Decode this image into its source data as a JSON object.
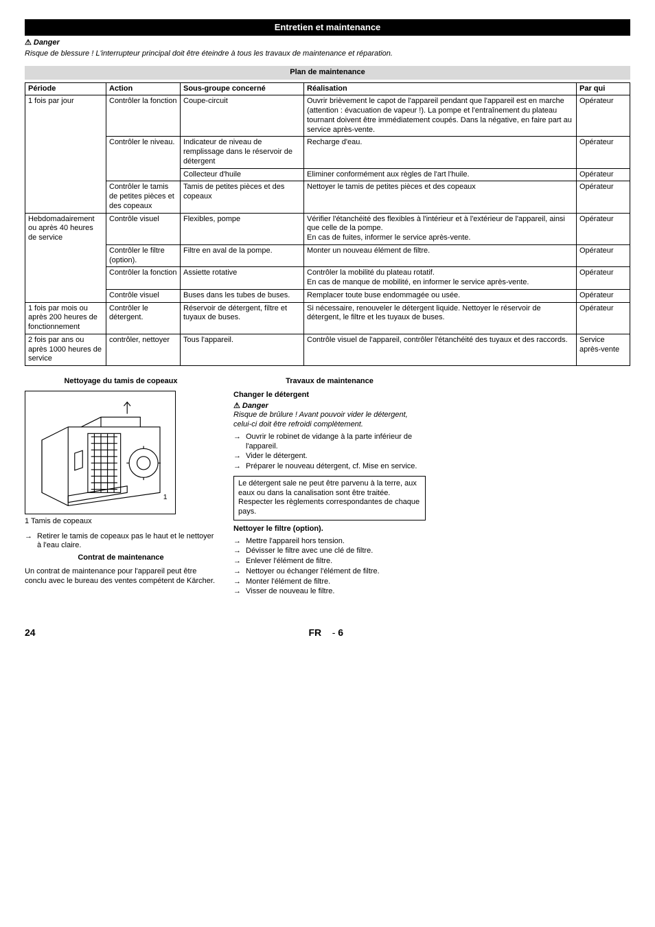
{
  "sectionTitle": "Entretien et maintenance",
  "danger": {
    "label": "Danger",
    "text": "Risque de blessure ! L'interrupteur principal doit être éteindre à tous les travaux de maintenance et réparation."
  },
  "planTitle": "Plan de maintenance",
  "table": {
    "headers": [
      "Période",
      "Action",
      "Sous-groupe concerné",
      "Réalisation",
      "Par qui"
    ],
    "groups": [
      {
        "period": "1 fois par jour",
        "rows": [
          {
            "action": "Contrôler la fonction",
            "sub": "Coupe-circuit",
            "real": "Ouvrir brièvement le capot de l'appareil pendant que l'appareil est en marche (attention : évacuation de vapeur !). La pompe et l'entraînement du plateau tournant doivent être immédiatement coupés. Dans la négative, en faire part au service après-vente.",
            "who": "Opérateur",
            "actionRowspan": 1
          },
          {
            "action": "Contrôler le niveau.",
            "sub": "Indicateur de niveau de remplissage dans le réservoir de détergent",
            "real": "Recharge d'eau.",
            "who": "Opérateur",
            "actionRowspan": 2
          },
          {
            "action": "",
            "sub": "Collecteur d'huile",
            "real": "Eliminer conformément aux règles de l'art l'huile.",
            "who": "Opérateur"
          },
          {
            "action": "Contrôler le tamis de petites pièces et des copeaux",
            "sub": "Tamis de petites pièces et des copeaux",
            "real": "Nettoyer le tamis de petites pièces et des copeaux",
            "who": "Opérateur",
            "actionRowspan": 1
          }
        ]
      },
      {
        "period": "Hebdomadairement ou après 40 heures de service",
        "rows": [
          {
            "action": "Contrôle visuel",
            "sub": "Flexibles, pompe",
            "real": "Vérifier l'étanchéité des flexibles à l'intérieur et à l'extérieur de l'appareil, ainsi que celle de la pompe.\nEn cas de fuites, informer le service après-vente.",
            "who": "Opérateur",
            "actionRowspan": 1
          },
          {
            "action": "Contrôler le filtre (option).",
            "sub": "Filtre en aval de la pompe.",
            "real": "Monter un nouveau élément de filtre.",
            "who": "Opérateur",
            "actionRowspan": 1
          },
          {
            "action": "Contrôler la fonction",
            "sub": "Assiette rotative",
            "real": "Contrôler la mobilité du plateau rotatif.\nEn cas de manque de mobilité, en informer le service après-vente.",
            "who": "Opérateur",
            "actionRowspan": 1
          },
          {
            "action": "Contrôle visuel",
            "sub": "Buses dans les tubes de buses.",
            "real": "Remplacer toute buse endommagée ou usée.",
            "who": "Opérateur",
            "actionRowspan": 1
          }
        ]
      },
      {
        "period": "1 fois par mois ou après 200 heures de fonctionnement",
        "rows": [
          {
            "action": "Contrôler le détergent.",
            "sub": "Réservoir de détergent, filtre et tuyaux de buses.",
            "real": "Si nécessaire, renouveler le détergent liquide. Nettoyer le réservoir de détergent, le filtre et les tuyaux de buses.",
            "who": "Opérateur",
            "actionRowspan": 1
          }
        ]
      },
      {
        "period": "2 fois par ans ou après 1000 heures de service",
        "rows": [
          {
            "action": "contrôler, nettoyer",
            "sub": "Tous l'appareil.",
            "real": "Contrôle visuel de l'appareil, contrôler l'étanchéité des tuyaux et des raccords.",
            "who": "Service après-vente",
            "actionRowspan": 1
          }
        ]
      }
    ]
  },
  "left": {
    "heading": "Nettoyage du tamis de copeaux",
    "caption": "1   Tamis de copeaux",
    "step": "Retirer le tamis de copeaux pas le haut et le nettoyer à l'eau claire.",
    "contractHeading": "Contrat de maintenance",
    "contractText": "Un contrat de maintenance pour l'appareil peut être conclu avec le bureau des ventes compétent de Kärcher."
  },
  "right": {
    "heading": "Travaux de maintenance",
    "sub1": "Changer le détergent",
    "dangerLabel": "Danger",
    "dangerText": "Risque de brûlure ! Avant pouvoir vider le détergent, celui-ci doit être refroidi complètement.",
    "steps1": [
      "Ouvrir le robinet de vidange à la parte inférieur de l'appareil.",
      "Vider le détergent.",
      "Préparer le nouveau détergent, cf. Mise en service."
    ],
    "note": "Le détergent sale ne peut être parvenu à la terre, aux eaux ou dans la canalisation sont être traitée. Respecter les règlements correspondantes de chaque pays.",
    "sub2": "Nettoyer le filtre (option).",
    "steps2": [
      "Mettre l'appareil hors tension.",
      "Dévisser le filtre avec une clé de filtre.",
      "Enlever l'élément de filtre.",
      "Nettoyer ou échanger l'élément de filtre.",
      "Monter l'élément de filtre.",
      "Visser de nouveau le filtre."
    ]
  },
  "footer": {
    "pageLeft": "24",
    "lang": "FR",
    "sep": "-",
    "pageRight": "6"
  },
  "diagram": {
    "label1": "1"
  }
}
